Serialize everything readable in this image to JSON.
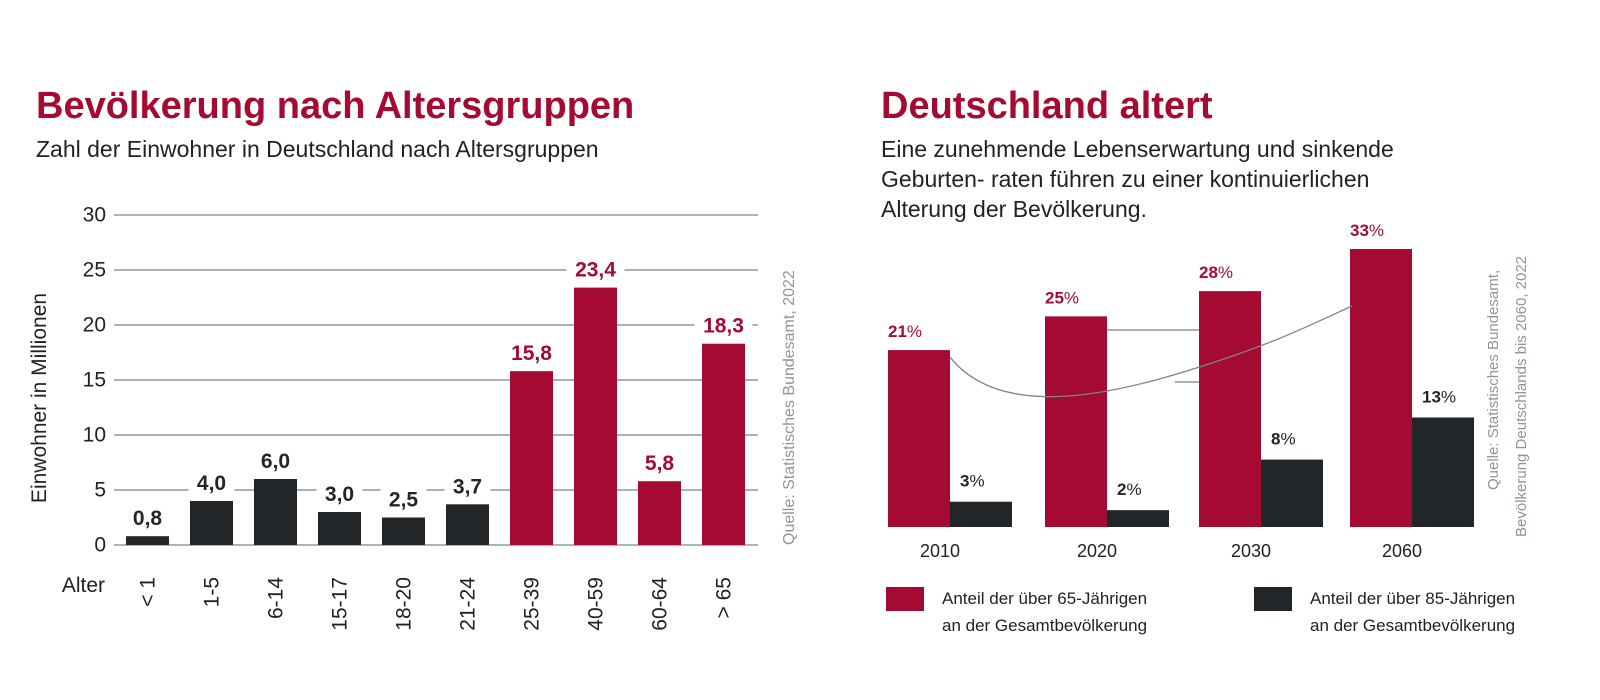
{
  "colors": {
    "red": "#a50b32",
    "dark": "#222628",
    "grid": "#7d8589",
    "source": "#8d969a",
    "curve": "#7d8589"
  },
  "left": {
    "title": "Bevölkerung nach Altersgruppen",
    "subtitle": "Zahl der Einwohner in Deutschland nach Altersgruppen",
    "source": "Quelle: Statistisches Bundesamt, 2022",
    "chart_data": {
      "type": "bar",
      "title": "Bevölkerung nach Altersgruppen",
      "ylabel": "Einwohner in Millionen",
      "xlabel": "Alter",
      "ylim": [
        0,
        30
      ],
      "yticks": [
        "0",
        "5",
        "10",
        "15",
        "20",
        "25",
        "30"
      ],
      "categories": [
        "< 1",
        "1-5",
        "6-14",
        "15-17",
        "18-20",
        "21-24",
        "25-39",
        "40-59",
        "60-64",
        "> 65"
      ],
      "values": [
        0.8,
        4.0,
        6.0,
        3.0,
        2.5,
        3.7,
        15.8,
        23.4,
        5.8,
        18.3
      ],
      "value_labels": [
        "0,8",
        "4,0",
        "6,0",
        "3,0",
        "2,5",
        "3,7",
        "15,8",
        "23,4",
        "5,8",
        "18,3"
      ],
      "bar_colors": [
        "dark",
        "dark",
        "dark",
        "dark",
        "dark",
        "dark",
        "red",
        "red",
        "red",
        "red"
      ],
      "grid": true
    }
  },
  "right": {
    "title": "Deutschland altert",
    "subtitle_lines": [
      "Eine zunehmende Lebenserwartung und sinkende",
      "Geburten- raten führen zu einer kontinuierlichen",
      "Alterung der Bevölkerung."
    ],
    "source_lines": [
      "Quelle: Statistisches Bundesamt,",
      "Bevölkerung Deutschlands bis 2060, 2022"
    ],
    "chart_data": {
      "type": "bar",
      "title": "Deutschland altert",
      "categories": [
        "2010",
        "2020",
        "2030",
        "2060"
      ],
      "series": [
        {
          "name": "Anteil der über 65-Jährigen an der Gesamtbevölkerung",
          "values": [
            21,
            25,
            28,
            33
          ],
          "labels": [
            "21",
            "25",
            "28",
            "33"
          ],
          "color": "red"
        },
        {
          "name": "Anteil der über 85-Jährigen an der Gesamtbevölkerung",
          "values": [
            3,
            2,
            8,
            13
          ],
          "labels": [
            "3",
            "2",
            "8",
            "13"
          ],
          "color": "dark"
        }
      ],
      "unit": "%",
      "legend_position": "bottom"
    },
    "legend": [
      {
        "line1": "Anteil der über 65-Jährigen",
        "line2": "an der Gesamtbevölkerung",
        "color": "red"
      },
      {
        "line1": "Anteil der über 85-Jährigen",
        "line2": "an der Gesamtbevölkerung",
        "color": "dark"
      }
    ]
  }
}
